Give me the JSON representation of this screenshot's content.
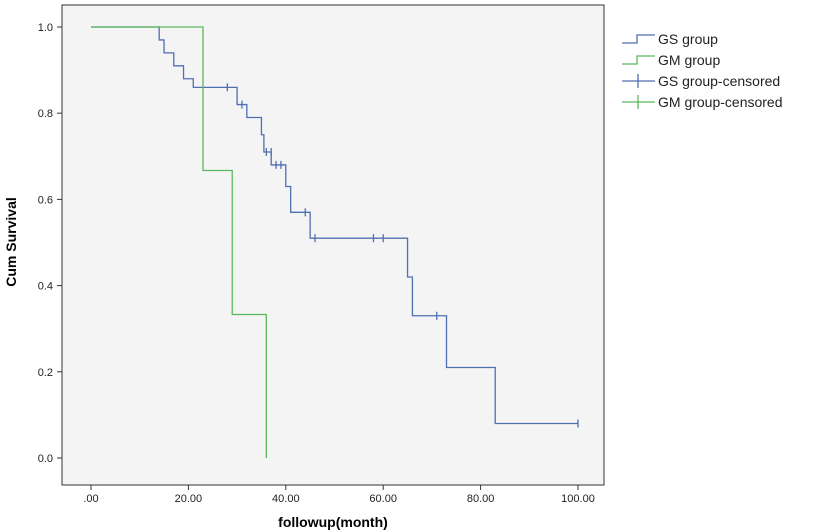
{
  "chart_data": {
    "type": "line",
    "subtype": "kaplan-meier step",
    "xlabel": "followup(month)",
    "ylabel": "Cum Survival",
    "xlim": [
      0,
      100
    ],
    "ylim": [
      0,
      1
    ],
    "x_ticks": [
      ".00",
      "20.00",
      "40.00",
      "60.00",
      "80.00",
      "100.00"
    ],
    "y_ticks": [
      "0.0",
      "0.2",
      "0.4",
      "0.6",
      "0.8",
      "1.0"
    ],
    "grid": false,
    "legend_position": "right",
    "series": [
      {
        "name": "GS group",
        "color": "#4f6fb0",
        "steps": [
          [
            0,
            1.0
          ],
          [
            14,
            0.97
          ],
          [
            15,
            0.94
          ],
          [
            17,
            0.91
          ],
          [
            19,
            0.88
          ],
          [
            21,
            0.86
          ],
          [
            30,
            0.82
          ],
          [
            32,
            0.79
          ],
          [
            35,
            0.75
          ],
          [
            35.5,
            0.71
          ],
          [
            37,
            0.68
          ],
          [
            40,
            0.63
          ],
          [
            41,
            0.57
          ],
          [
            45,
            0.51
          ],
          [
            65,
            0.42
          ],
          [
            66,
            0.33
          ],
          [
            73,
            0.21
          ],
          [
            83,
            0.08
          ],
          [
            100,
            0.08
          ]
        ]
      },
      {
        "name": "GM group",
        "color": "#5cb85c",
        "steps": [
          [
            0,
            1.0
          ],
          [
            23,
            0.667
          ],
          [
            29,
            0.333
          ],
          [
            36,
            0.0
          ]
        ]
      }
    ],
    "censored_series": [
      {
        "name": "GS group-censored",
        "color": "#4f6fb0",
        "points": [
          [
            28,
            0.86
          ],
          [
            31,
            0.82
          ],
          [
            36,
            0.71
          ],
          [
            37,
            0.71
          ],
          [
            38,
            0.68
          ],
          [
            39,
            0.68
          ],
          [
            44,
            0.57
          ],
          [
            46,
            0.51
          ],
          [
            58,
            0.51
          ],
          [
            60,
            0.51
          ],
          [
            71,
            0.33
          ],
          [
            100,
            0.08
          ]
        ]
      },
      {
        "name": "GM group-censored",
        "color": "#5cb85c",
        "points": []
      }
    ]
  }
}
